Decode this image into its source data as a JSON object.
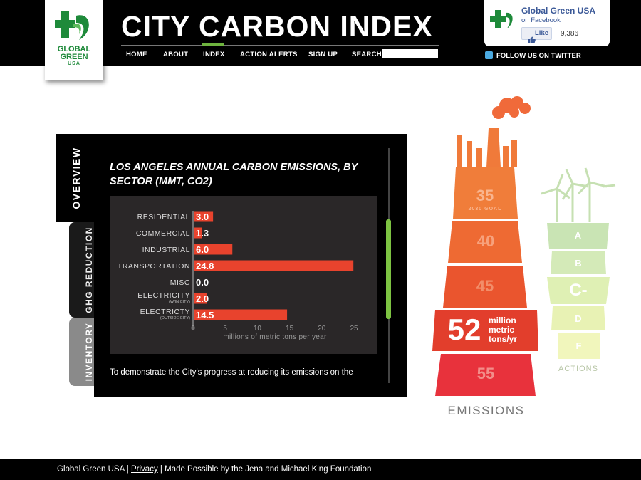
{
  "header": {
    "title": "CITY CARBON INDEX",
    "logo_text_line1": "GLOBAL",
    "logo_text_line2": "GREEN",
    "logo_text_line3": "USA",
    "nav": [
      "HOME",
      "ABOUT",
      "INDEX",
      "ACTION ALERTS",
      "SIGN UP",
      "SEARCH"
    ],
    "active_nav": "INDEX",
    "search_value": ""
  },
  "facebook": {
    "name": "Global Green USA",
    "sub": "on Facebook",
    "like_label": "Like",
    "like_count": "9,386"
  },
  "twitter": {
    "label": "FOLLOW US ON TWITTER"
  },
  "tabs": [
    "OVERVIEW",
    "GHG REDUCTION",
    "INVENTORY"
  ],
  "panel": {
    "description": "To demonstrate the City's progress at reducing its emissions on the"
  },
  "chart_data": {
    "type": "bar",
    "orientation": "horizontal",
    "title": "LOS ANGELES ANNUAL CARBON EMISSIONS, BY SECTOR (MMT, CO2)",
    "categories": [
      {
        "label": "RESIDENTIAL",
        "sub": ""
      },
      {
        "label": "COMMERCIAL",
        "sub": ""
      },
      {
        "label": "INDUSTRIAL",
        "sub": ""
      },
      {
        "label": "TRANSPORTATION",
        "sub": ""
      },
      {
        "label": "MISC",
        "sub": ""
      },
      {
        "label": "ELECTRICITY",
        "sub": "(W/IN CITY)"
      },
      {
        "label": "ELECTRICTY",
        "sub": "(OUTSIDE CITY)"
      }
    ],
    "values": [
      3.0,
      1.3,
      6.0,
      24.8,
      0.0,
      2.0,
      14.5
    ],
    "value_labels": [
      "3.0",
      "1.3",
      "6.0",
      "24.8",
      "0.0",
      "2.0",
      "14.5"
    ],
    "xlim": [
      0,
      25
    ],
    "xticks": [
      "0",
      "5",
      "10",
      "15",
      "20",
      "25"
    ],
    "xlabel": "millions of metric tons per year",
    "bar_color": "#e8432d"
  },
  "emissions": {
    "levels": [
      "35",
      "40",
      "45",
      "52",
      "55"
    ],
    "goal_label": "2030 GOAL",
    "current_value": "52",
    "current_unit_line1": "million",
    "current_unit_line2": "metric",
    "current_unit_line3": "tons/yr",
    "label": "EMISSIONS"
  },
  "actions": {
    "grades": [
      "A",
      "B",
      "C-",
      "D",
      "F"
    ],
    "current_grade": "C-",
    "label": "ACTIONS"
  },
  "footer": {
    "org": "Global Green USA",
    "privacy": "Privacy",
    "credit": "Made Possible by the Jena and Michael King Foundation"
  }
}
